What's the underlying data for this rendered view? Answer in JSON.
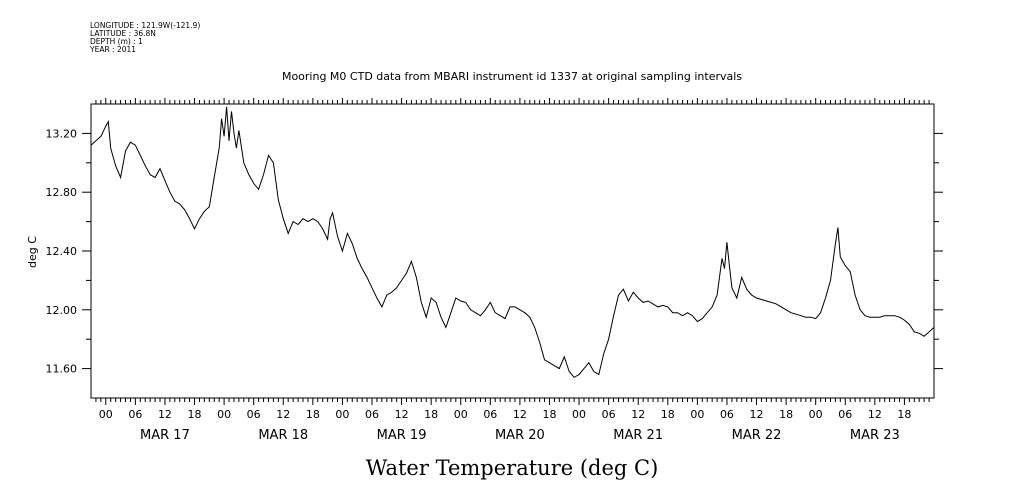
{
  "header": {
    "longitude": "LONGITUDE : 121.9W(-121.9)",
    "latitude": "LATITUDE : 36.8N",
    "depth": "DEPTH (m) : 1",
    "year": "YEAR : 2011"
  },
  "chart_data": {
    "type": "line",
    "title": "Mooring M0 CTD data from MBARI instrument id 1337 at original sampling intervals",
    "xlabel": "Water Temperature (deg C)",
    "ylabel": "deg C",
    "x_unit": "hours since 2011-03-16 21:00",
    "xlim": [
      0,
      171
    ],
    "ylim": [
      11.4,
      13.4
    ],
    "y_ticks": [
      "13.20",
      "12.80",
      "12.40",
      "12.00",
      "11.60"
    ],
    "x_hour_labels": [
      "00",
      "06",
      "12",
      "18",
      "00",
      "06",
      "12",
      "18",
      "00",
      "06",
      "12",
      "18",
      "00",
      "06",
      "12",
      "18",
      "00",
      "06",
      "12",
      "18",
      "00",
      "06",
      "12",
      "18",
      "00",
      "06",
      "12",
      "18"
    ],
    "x_date_labels": [
      "MAR 17",
      "MAR 18",
      "MAR 19",
      "MAR 20",
      "MAR 21",
      "MAR 22",
      "MAR 23"
    ],
    "series": [
      {
        "points": [
          [
            0,
            13.12
          ],
          [
            1,
            13.15
          ],
          [
            2,
            13.18
          ],
          [
            3,
            13.25
          ],
          [
            3.5,
            13.28
          ],
          [
            4,
            13.1
          ],
          [
            5,
            12.98
          ],
          [
            6,
            12.9
          ],
          [
            7,
            13.08
          ],
          [
            8,
            13.14
          ],
          [
            9,
            13.12
          ],
          [
            10,
            13.05
          ],
          [
            11,
            12.98
          ],
          [
            12,
            12.92
          ],
          [
            13,
            12.9
          ],
          [
            14,
            12.96
          ],
          [
            15,
            12.88
          ],
          [
            16,
            12.8
          ],
          [
            17,
            12.74
          ],
          [
            18,
            12.72
          ],
          [
            19,
            12.68
          ],
          [
            20,
            12.62
          ],
          [
            21,
            12.55
          ],
          [
            22,
            12.62
          ],
          [
            23,
            12.67
          ],
          [
            24,
            12.7
          ],
          [
            25,
            12.9
          ],
          [
            26,
            13.1
          ],
          [
            26.5,
            13.3
          ],
          [
            27,
            13.18
          ],
          [
            27.5,
            13.38
          ],
          [
            28,
            13.15
          ],
          [
            28.5,
            13.35
          ],
          [
            29,
            13.2
          ],
          [
            29.5,
            13.1
          ],
          [
            30,
            13.22
          ],
          [
            31,
            13.0
          ],
          [
            32,
            12.92
          ],
          [
            33,
            12.86
          ],
          [
            34,
            12.82
          ],
          [
            35,
            12.92
          ],
          [
            36,
            13.05
          ],
          [
            37,
            13.0
          ],
          [
            38,
            12.75
          ],
          [
            39,
            12.62
          ],
          [
            40,
            12.52
          ],
          [
            41,
            12.6
          ],
          [
            42,
            12.58
          ],
          [
            43,
            12.62
          ],
          [
            44,
            12.6
          ],
          [
            45,
            12.62
          ],
          [
            46,
            12.6
          ],
          [
            47,
            12.55
          ],
          [
            48,
            12.48
          ],
          [
            48.5,
            12.62
          ],
          [
            49,
            12.66
          ],
          [
            50,
            12.5
          ],
          [
            51,
            12.4
          ],
          [
            52,
            12.52
          ],
          [
            53,
            12.45
          ],
          [
            54,
            12.35
          ],
          [
            55,
            12.28
          ],
          [
            56,
            12.22
          ],
          [
            57,
            12.15
          ],
          [
            58,
            12.08
          ],
          [
            59,
            12.02
          ],
          [
            60,
            12.1
          ],
          [
            61,
            12.12
          ],
          [
            62,
            12.15
          ],
          [
            63,
            12.2
          ],
          [
            64,
            12.25
          ],
          [
            65,
            12.33
          ],
          [
            66,
            12.22
          ],
          [
            67,
            12.05
          ],
          [
            68,
            11.95
          ],
          [
            69,
            12.08
          ],
          [
            70,
            12.05
          ],
          [
            71,
            11.95
          ],
          [
            72,
            11.88
          ],
          [
            73,
            11.98
          ],
          [
            74,
            12.08
          ],
          [
            75,
            12.06
          ],
          [
            76,
            12.05
          ],
          [
            77,
            12.0
          ],
          [
            78,
            11.98
          ],
          [
            79,
            11.96
          ],
          [
            80,
            12.0
          ],
          [
            81,
            12.05
          ],
          [
            82,
            11.98
          ],
          [
            83,
            11.96
          ],
          [
            84,
            11.94
          ],
          [
            85,
            12.02
          ],
          [
            86,
            12.02
          ],
          [
            87,
            12.0
          ],
          [
            88,
            11.98
          ],
          [
            89,
            11.95
          ],
          [
            90,
            11.88
          ],
          [
            91,
            11.78
          ],
          [
            92,
            11.66
          ],
          [
            93,
            11.64
          ],
          [
            94,
            11.62
          ],
          [
            95,
            11.6
          ],
          [
            96,
            11.68
          ],
          [
            97,
            11.58
          ],
          [
            98,
            11.54
          ],
          [
            99,
            11.56
          ],
          [
            100,
            11.6
          ],
          [
            101,
            11.64
          ],
          [
            102,
            11.58
          ],
          [
            103,
            11.56
          ],
          [
            104,
            11.7
          ],
          [
            105,
            11.8
          ],
          [
            106,
            11.96
          ],
          [
            107,
            12.1
          ],
          [
            108,
            12.14
          ],
          [
            109,
            12.06
          ],
          [
            110,
            12.12
          ],
          [
            111,
            12.08
          ],
          [
            112,
            12.05
          ],
          [
            113,
            12.06
          ],
          [
            114,
            12.04
          ],
          [
            115,
            12.02
          ],
          [
            116,
            12.03
          ],
          [
            117,
            12.02
          ],
          [
            118,
            11.98
          ],
          [
            119,
            11.98
          ],
          [
            120,
            11.96
          ],
          [
            121,
            11.98
          ],
          [
            122,
            11.96
          ],
          [
            123,
            11.92
          ],
          [
            124,
            11.94
          ],
          [
            125,
            11.98
          ],
          [
            126,
            12.02
          ],
          [
            127,
            12.1
          ],
          [
            128,
            12.35
          ],
          [
            128.5,
            12.28
          ],
          [
            129,
            12.46
          ],
          [
            129.5,
            12.3
          ],
          [
            130,
            12.15
          ],
          [
            131,
            12.08
          ],
          [
            132,
            12.22
          ],
          [
            133,
            12.14
          ],
          [
            134,
            12.1
          ],
          [
            135,
            12.08
          ],
          [
            136,
            12.07
          ],
          [
            137,
            12.06
          ],
          [
            138,
            12.05
          ],
          [
            139,
            12.04
          ],
          [
            140,
            12.02
          ],
          [
            141,
            12.0
          ],
          [
            142,
            11.98
          ],
          [
            143,
            11.97
          ],
          [
            144,
            11.96
          ],
          [
            145,
            11.95
          ],
          [
            146,
            11.95
          ],
          [
            147,
            11.94
          ],
          [
            148,
            11.98
          ],
          [
            149,
            12.08
          ],
          [
            150,
            12.2
          ],
          [
            151,
            12.45
          ],
          [
            151.5,
            12.56
          ],
          [
            152,
            12.36
          ],
          [
            153,
            12.3
          ],
          [
            154,
            12.26
          ],
          [
            155,
            12.1
          ],
          [
            156,
            12.0
          ],
          [
            157,
            11.96
          ],
          [
            158,
            11.95
          ],
          [
            159,
            11.95
          ],
          [
            160,
            11.95
          ],
          [
            161,
            11.96
          ],
          [
            162,
            11.96
          ],
          [
            163,
            11.96
          ],
          [
            164,
            11.95
          ],
          [
            165,
            11.93
          ],
          [
            166,
            11.9
          ],
          [
            167,
            11.85
          ],
          [
            168,
            11.84
          ],
          [
            169,
            11.82
          ],
          [
            170,
            11.85
          ],
          [
            171,
            11.88
          ]
        ]
      }
    ]
  }
}
